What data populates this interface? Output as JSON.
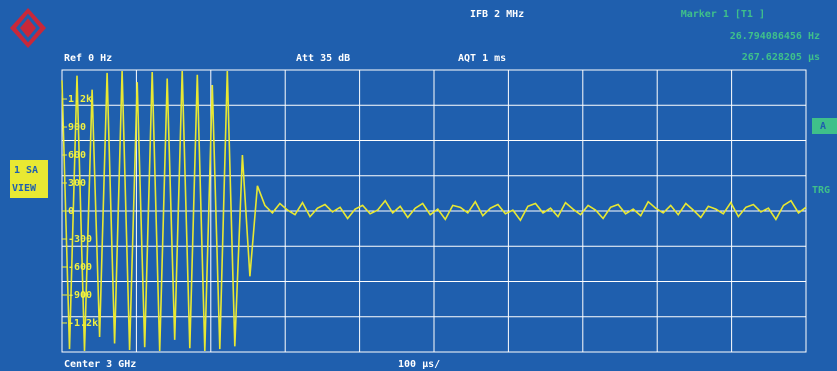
{
  "screen": {
    "header": {
      "ifb": "IFB 2 MHz",
      "ref": "Ref 0 Hz",
      "att": "Att 35 dB",
      "aqt": "AQT 1 ms",
      "marker": "Marker 1 [T1 ]",
      "marker_freq": "26.794086456 Hz",
      "marker_time": "267.628205 µs"
    },
    "side": {
      "sa": "1 SA",
      "view": "VIEW",
      "a": "A",
      "trg": "TRG"
    },
    "footer": {
      "center": "Center 3 GHz",
      "span": "100 µs/"
    }
  },
  "chart_data": {
    "type": "line",
    "ylim": [
      -1511,
      1511
    ],
    "yticks": [
      {
        "value": 1200,
        "label": "1.2k"
      },
      900,
      600,
      300,
      0,
      -300,
      -600,
      -900,
      {
        "value": -1200,
        "label": "-1.2k"
      }
    ],
    "series": [
      {
        "color": "#e8e832",
        "values": [
          1400,
          -1480,
          1450,
          -1500,
          1300,
          -1350,
          1480,
          -1420,
          1500,
          -1490,
          1380,
          -1460,
          1490,
          -1500,
          1420,
          -1380,
          1500,
          -1470,
          1460,
          -1500,
          1350,
          -1480,
          1500,
          -1450,
          600,
          -700,
          270,
          60,
          -20,
          80,
          10,
          -40,
          90,
          -60,
          30,
          70,
          -10,
          40,
          -80,
          20,
          60,
          -30,
          10,
          110,
          -20,
          50,
          -70,
          30,
          80,
          -40,
          20,
          -90,
          60,
          40,
          -20,
          100,
          -50,
          30,
          70,
          -30,
          10,
          -100,
          50,
          80,
          -20,
          30,
          -60,
          90,
          20,
          -40,
          60,
          10,
          -80,
          40,
          70,
          -30,
          20,
          -50,
          100,
          30,
          -20,
          60,
          -40,
          80,
          10,
          -70,
          50,
          20,
          -30,
          90,
          -60,
          40,
          70,
          -10,
          30,
          -90,
          60,
          110,
          -20,
          40
        ]
      }
    ]
  }
}
